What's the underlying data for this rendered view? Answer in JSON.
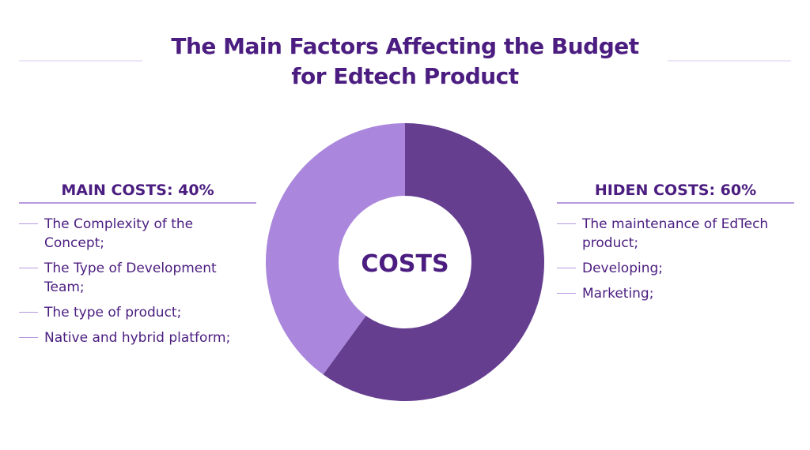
{
  "title_lines": [
    "The Main Factors Affecting the Budget",
    "for Edtech Product"
  ],
  "left": {
    "heading": "MAIN COSTS: 40%",
    "items": [
      "The Complexity of the Concept;",
      "The Type of Development Team;",
      "The type of product;",
      "Native and hybrid platform;"
    ]
  },
  "right": {
    "heading": "HIDEN COSTS: 60%",
    "items": [
      "The maintenance of EdTech product;",
      "Developing;",
      "Marketing;"
    ]
  },
  "chart_data": {
    "type": "pie",
    "center_label": "COSTS",
    "series": [
      {
        "name": "HIDEN COSTS",
        "value": 60,
        "color": "#653e90"
      },
      {
        "name": "MAIN COSTS",
        "value": 40,
        "color": "#aa87dc"
      }
    ]
  }
}
